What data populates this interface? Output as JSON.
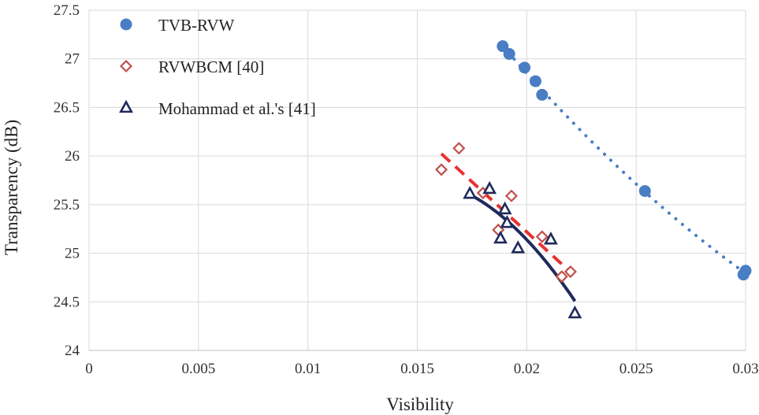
{
  "chart_data": {
    "type": "scatter",
    "title": "",
    "xlabel": "Visibility",
    "ylabel": "Transparency (dB)",
    "xlim": [
      0,
      0.03
    ],
    "ylim": [
      24,
      27.5
    ],
    "x_ticks": [
      0,
      0.005,
      0.01,
      0.015,
      0.02,
      0.025,
      0.03
    ],
    "x_tick_labels": [
      "0",
      "0.005",
      "0.01",
      "0.015",
      "0.02",
      "0.025",
      "0.03"
    ],
    "y_ticks": [
      24,
      24.5,
      25,
      25.5,
      26,
      26.5,
      27,
      27.5
    ],
    "y_tick_labels": [
      "24",
      "24.5",
      "25",
      "25.5",
      "26",
      "26.5",
      "27",
      "27.5"
    ],
    "grid": true,
    "legend_position": "top-left",
    "series": [
      {
        "name": "TVB-RVW",
        "marker": "filled-circle",
        "color": "#4a7ec4",
        "trendline": "dotted",
        "trend_fit": "quadratic",
        "points": [
          [
            0.0189,
            27.13
          ],
          [
            0.0192,
            27.05
          ],
          [
            0.0199,
            26.91
          ],
          [
            0.0204,
            26.77
          ],
          [
            0.0207,
            26.63
          ],
          [
            0.0254,
            25.64
          ],
          [
            0.0299,
            24.78
          ],
          [
            0.03,
            24.82
          ]
        ]
      },
      {
        "name": "RVWBCM [40]",
        "marker": "open-diamond",
        "color": "#c0504d",
        "trendline": "dashed",
        "trendline_color": "#e8312f",
        "trend_fit": "linear",
        "points": [
          [
            0.0161,
            25.86
          ],
          [
            0.0169,
            26.08
          ],
          [
            0.018,
            25.62
          ],
          [
            0.0187,
            25.24
          ],
          [
            0.0193,
            25.59
          ],
          [
            0.0207,
            25.17
          ],
          [
            0.0216,
            24.76
          ],
          [
            0.022,
            24.81
          ]
        ]
      },
      {
        "name": "Mohammad et al.'s [41]",
        "marker": "open-triangle",
        "color": "#1f2a5c",
        "trendline": "solid",
        "trend_fit": "quadratic",
        "points": [
          [
            0.0174,
            25.61
          ],
          [
            0.0183,
            25.66
          ],
          [
            0.0188,
            25.15
          ],
          [
            0.019,
            25.45
          ],
          [
            0.0191,
            25.31
          ],
          [
            0.0196,
            25.05
          ],
          [
            0.0211,
            25.14
          ],
          [
            0.0222,
            24.38
          ]
        ]
      }
    ]
  }
}
